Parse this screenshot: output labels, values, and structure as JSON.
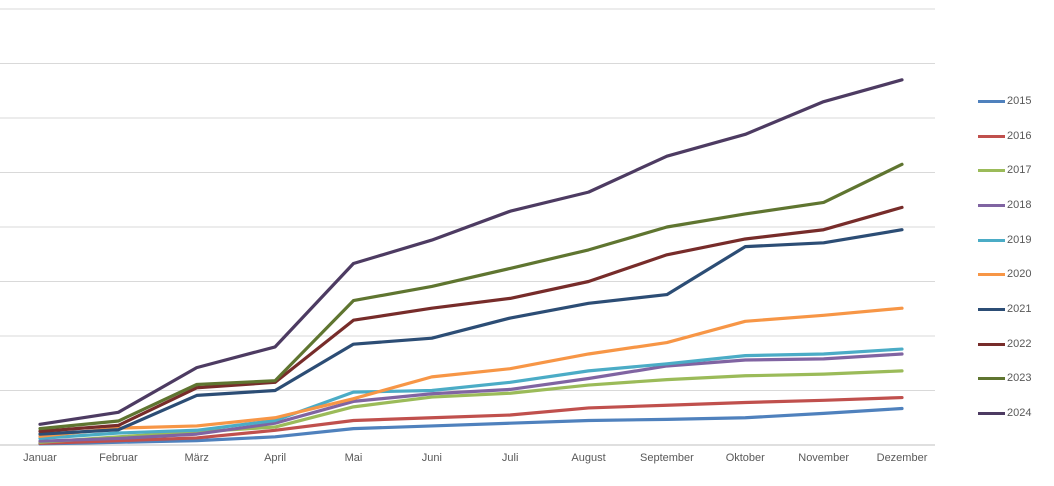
{
  "chart_data": {
    "type": "line",
    "title": "",
    "xlabel": "",
    "ylabel": "",
    "x_categories": [
      "Januar",
      "Februar",
      "März",
      "April",
      "Mai",
      "Juni",
      "Juli",
      "August",
      "September",
      "Oktober",
      "November",
      "Dezember"
    ],
    "series": [
      {
        "name": "2015",
        "color": "#4F81BD",
        "values": [
          0.02,
          0.05,
          0.08,
          0.15,
          0.3,
          0.35,
          0.4,
          0.45,
          0.47,
          0.5,
          0.58,
          0.67
        ]
      },
      {
        "name": "2016",
        "color": "#C0504D",
        "values": [
          0.03,
          0.08,
          0.13,
          0.27,
          0.45,
          0.5,
          0.55,
          0.68,
          0.73,
          0.78,
          0.82,
          0.87
        ]
      },
      {
        "name": "2017",
        "color": "#9BBB59",
        "values": [
          0.05,
          0.15,
          0.24,
          0.33,
          0.7,
          0.88,
          0.95,
          1.1,
          1.2,
          1.27,
          1.3,
          1.36
        ]
      },
      {
        "name": "2018",
        "color": "#8064A2",
        "values": [
          0.07,
          0.12,
          0.2,
          0.4,
          0.8,
          0.94,
          1.02,
          1.22,
          1.45,
          1.56,
          1.58,
          1.67
        ]
      },
      {
        "name": "2019",
        "color": "#4BACC6",
        "values": [
          0.12,
          0.22,
          0.27,
          0.45,
          0.97,
          1.0,
          1.15,
          1.36,
          1.49,
          1.64,
          1.67,
          1.76
        ]
      },
      {
        "name": "2020",
        "color": "#F79646",
        "values": [
          0.16,
          0.31,
          0.35,
          0.5,
          0.85,
          1.25,
          1.4,
          1.67,
          1.88,
          2.27,
          2.38,
          2.51
        ]
      },
      {
        "name": "2021",
        "color": "#2C4D75",
        "values": [
          0.2,
          0.28,
          0.91,
          1.0,
          1.85,
          1.96,
          2.33,
          2.6,
          2.76,
          3.64,
          3.71,
          3.95
        ]
      },
      {
        "name": "2022",
        "color": "#772C2A",
        "values": [
          0.25,
          0.36,
          1.05,
          1.15,
          2.29,
          2.51,
          2.69,
          3.0,
          3.49,
          3.78,
          3.95,
          4.36
        ]
      },
      {
        "name": "2023",
        "color": "#5F7530",
        "values": [
          0.3,
          0.44,
          1.11,
          1.18,
          2.65,
          2.91,
          3.24,
          3.58,
          4.0,
          4.24,
          4.45,
          5.15
        ]
      },
      {
        "name": "2024",
        "color": "#4D3B62",
        "values": [
          0.38,
          0.6,
          1.42,
          1.8,
          3.33,
          3.76,
          4.29,
          4.64,
          5.3,
          5.7,
          6.3,
          6.7
        ]
      }
    ],
    "ylim": [
      0,
      8
    ],
    "y_gridline_step": 1,
    "y_axis_labels_visible": false,
    "y_unit": "gridline units (no y-axis tick labels visible in image)",
    "grid": true,
    "legend_position": "right",
    "legend_entries": [
      "2015",
      "2016",
      "2017",
      "2018",
      "2019",
      "2020",
      "2021",
      "2022",
      "2023",
      "2024"
    ]
  },
  "style": {
    "gridline_color": "#D9D9D9",
    "axis_line_color": "#BFBFBF",
    "label_color": "#595959",
    "background_color": "#FFFFFF"
  }
}
